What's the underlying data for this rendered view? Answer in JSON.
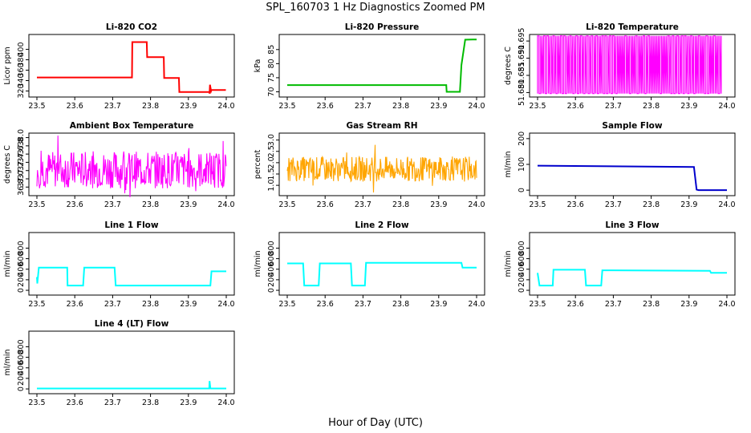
{
  "figure": {
    "title": "SPL_160703  1 Hz Diagnostics Zoomed PM",
    "xlabel": "Hour of Day (UTC)"
  },
  "chart_data": [
    {
      "type": "line",
      "title": "Li-820 CO2",
      "ylabel": "Licor ppm",
      "color": "#ff0000",
      "xlim": [
        23.5,
        24.0
      ],
      "ylim": [
        313,
        424
      ],
      "xticks": [
        "23.5",
        "23.6",
        "23.7",
        "23.8",
        "23.9",
        "24.0"
      ],
      "yticks": [
        "320",
        "340",
        "360",
        "380",
        "400"
      ],
      "x": [
        23.5,
        23.751,
        23.752,
        23.79,
        23.791,
        23.835,
        23.836,
        23.875,
        23.876,
        23.955,
        23.956,
        23.957,
        23.96,
        23.961,
        23.999
      ],
      "y": [
        346,
        346,
        414,
        414,
        385,
        385,
        345,
        345,
        318,
        318,
        315,
        332,
        320,
        322,
        322
      ]
    },
    {
      "type": "line",
      "title": "Li-820 Pressure",
      "ylabel": "kPa",
      "color": "#00bb00",
      "xlim": [
        23.5,
        24.0
      ],
      "ylim": [
        69.0,
        89.5
      ],
      "xticks": [
        "23.5",
        "23.6",
        "23.7",
        "23.8",
        "23.9",
        "24.0"
      ],
      "yticks": [
        "70",
        "75",
        "80",
        "85"
      ],
      "x": [
        23.5,
        23.92,
        23.921,
        23.956,
        23.96,
        23.97,
        23.99,
        24.0
      ],
      "y": [
        72.4,
        72.4,
        70.0,
        70.0,
        79.5,
        88.5,
        88.6,
        88.6
      ]
    },
    {
      "type": "line",
      "title": "Li-820 Temperature",
      "ylabel": "degrees C",
      "color": "#ff00ff",
      "xlim": [
        23.5,
        24.0
      ],
      "ylim": [
        51.6794,
        51.6962
      ],
      "xticks": [
        "23.5",
        "23.6",
        "23.7",
        "23.8",
        "23.9",
        "24.0"
      ],
      "yticks": [
        "51.680",
        "51.685",
        "51.690",
        "51.695"
      ],
      "low": 51.6797,
      "high": 51.6965,
      "x_end": 23.985
    },
    {
      "type": "line",
      "title": "Ambient Box Temperature",
      "ylabel": "degrees C",
      "color": "#ff00ff",
      "xlim": [
        23.5,
        24.0
      ],
      "ylim": [
        36.65,
        38.05
      ],
      "xticks": [
        "23.5",
        "23.6",
        "23.7",
        "23.8",
        "23.9",
        "24.0"
      ],
      "yticks": [
        "36.8",
        "37.0",
        "37.2",
        "37.4",
        "37.6",
        "37.8",
        "38.0"
      ],
      "center": 37.22,
      "amplitude": 0.45
    },
    {
      "type": "line",
      "title": "Gas Stream RH",
      "ylabel": "percent",
      "color": "#ffa500",
      "xlim": [
        23.5,
        24.0
      ],
      "ylim": [
        0.65,
        3.2
      ],
      "xticks": [
        "23.5",
        "23.6",
        "23.7",
        "23.8",
        "23.9",
        "24.0"
      ],
      "yticks": [
        "1.0",
        "1.5",
        "2.0",
        "2.5",
        "3.0"
      ],
      "center": 1.72,
      "amplitude": 0.55
    },
    {
      "type": "line",
      "title": "Sample Flow",
      "ylabel": "ml/min",
      "color": "#0000cc",
      "xlim": [
        23.5,
        24.0
      ],
      "ylim": [
        -12,
        212
      ],
      "xticks": [
        "23.5",
        "23.6",
        "23.7",
        "23.8",
        "23.9",
        "24.0"
      ],
      "yticks": [
        "0",
        "100",
        "200"
      ],
      "x": [
        23.5,
        23.913,
        23.92,
        23.925,
        24.0
      ],
      "y": [
        95,
        90,
        2,
        0,
        0
      ]
    },
    {
      "type": "line",
      "title": "Line 1 Flow",
      "ylabel": "ml/min",
      "color": "#00ffff",
      "xlim": [
        23.5,
        24.0
      ],
      "ylim": [
        -45,
        1050
      ],
      "xticks": [
        "23.5",
        "23.6",
        "23.7",
        "23.8",
        "23.9",
        "24.0"
      ],
      "yticks": [
        "0",
        "200",
        "400",
        "600",
        "800"
      ],
      "x": [
        23.5,
        23.501,
        23.505,
        23.58,
        23.581,
        23.622,
        23.625,
        23.705,
        23.708,
        23.958,
        23.961,
        24.0
      ],
      "y": [
        250,
        130,
        430,
        430,
        90,
        90,
        430,
        430,
        90,
        90,
        360,
        360
      ]
    },
    {
      "type": "line",
      "title": "Line 2 Flow",
      "ylabel": "ml/min",
      "color": "#00ffff",
      "xlim": [
        23.5,
        24.0
      ],
      "ylim": [
        -45,
        1050
      ],
      "xticks": [
        "23.5",
        "23.6",
        "23.7",
        "23.8",
        "23.9",
        "24.0"
      ],
      "yticks": [
        "0",
        "200",
        "400",
        "600",
        "800"
      ],
      "x": [
        23.5,
        23.542,
        23.545,
        23.583,
        23.586,
        23.668,
        23.671,
        23.705,
        23.708,
        23.96,
        23.963,
        24.0
      ],
      "y": [
        510,
        510,
        90,
        90,
        510,
        510,
        90,
        90,
        520,
        520,
        430,
        430
      ]
    },
    {
      "type": "line",
      "title": "Line 3 Flow",
      "ylabel": "ml/min",
      "color": "#00ffff",
      "xlim": [
        23.5,
        24.0
      ],
      "ylim": [
        -45,
        1050
      ],
      "xticks": [
        "23.5",
        "23.6",
        "23.7",
        "23.8",
        "23.9",
        "24.0"
      ],
      "yticks": [
        "0",
        "200",
        "400",
        "600",
        "800"
      ],
      "x": [
        23.5,
        23.505,
        23.54,
        23.542,
        23.625,
        23.628,
        23.668,
        23.671,
        23.955,
        23.958,
        24.0
      ],
      "y": [
        330,
        90,
        90,
        390,
        390,
        90,
        90,
        380,
        370,
        330,
        330
      ]
    },
    {
      "type": "line",
      "title": "Line 4 (LT) Flow",
      "ylabel": "ml/min",
      "color": "#00ffff",
      "xlim": [
        23.5,
        24.0
      ],
      "ylim": [
        -45,
        1050
      ],
      "xticks": [
        "23.5",
        "23.6",
        "23.7",
        "23.8",
        "23.9",
        "24.0"
      ],
      "yticks": [
        "0",
        "200",
        "400",
        "600",
        "800"
      ],
      "x": [
        23.5,
        23.955,
        23.956,
        23.958,
        23.96,
        24.0
      ],
      "y": [
        8,
        8,
        150,
        10,
        8,
        8
      ]
    }
  ]
}
